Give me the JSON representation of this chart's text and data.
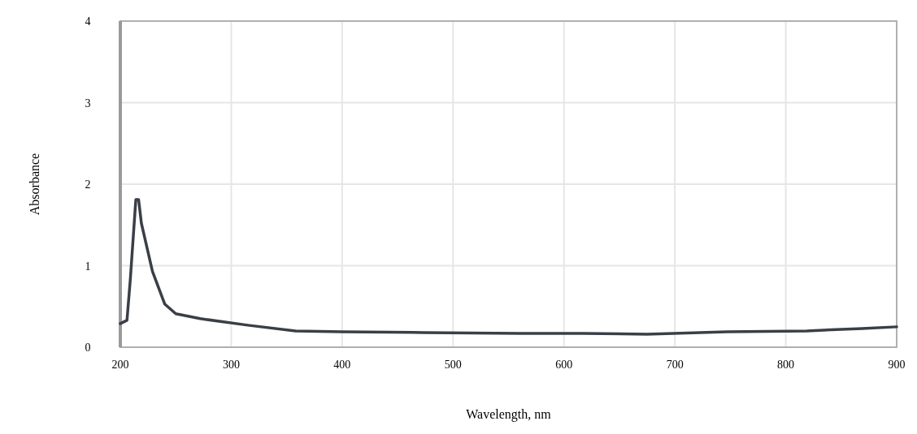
{
  "chart_data": {
    "type": "line",
    "xlabel": "Wavelength, nm",
    "ylabel": "Absorbance",
    "x": [
      200,
      206,
      209,
      212,
      214,
      216.5,
      219,
      229,
      240,
      250,
      272,
      315,
      358,
      400,
      473,
      560,
      617,
      675,
      747,
      819,
      869,
      900
    ],
    "series": [
      {
        "color": "#3a3f47",
        "values": [
          0.29,
          0.33,
          0.83,
          1.42,
          1.81,
          1.81,
          1.52,
          0.93,
          0.53,
          0.41,
          0.35,
          0.27,
          0.2,
          0.19,
          0.18,
          0.17,
          0.17,
          0.16,
          0.19,
          0.2,
          0.23,
          0.25
        ]
      }
    ],
    "xlim": [
      200,
      900
    ],
    "xticks": [
      200,
      300,
      400,
      500,
      600,
      700,
      800,
      900
    ],
    "ylim": [
      0,
      4
    ],
    "yticks": [
      0,
      1,
      2,
      3,
      4
    ],
    "grid": true
  }
}
